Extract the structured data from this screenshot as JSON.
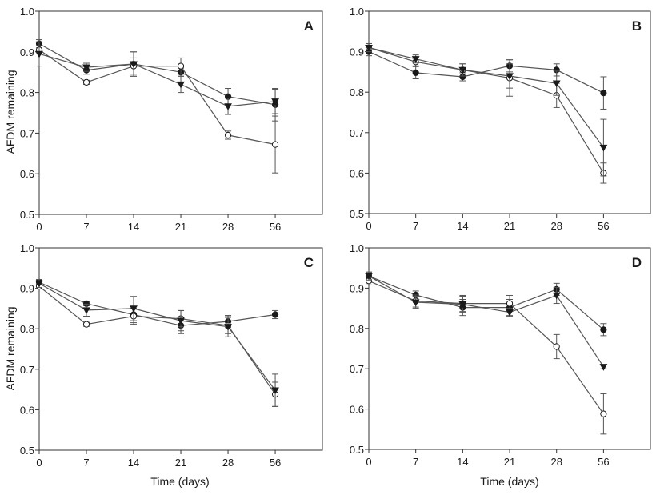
{
  "figure": {
    "x_axis_title": "Time (days)",
    "y_axis_title": "AFDM remaining"
  },
  "chart_data": [
    {
      "type": "line",
      "panel_label": "A",
      "categories": [
        "0",
        "7",
        "14",
        "21",
        "28",
        "56"
      ],
      "ylim": [
        0.5,
        1.0
      ],
      "yticks": [
        "0.5",
        "0.6",
        "0.7",
        "0.8",
        "0.9",
        "1.0"
      ],
      "xlabel": "",
      "ylabel": "AFDM remaining",
      "grid": false,
      "series": [
        {
          "marker": "circle-filled",
          "values": [
            0.92,
            0.855,
            0.87,
            0.85,
            0.79,
            0.77
          ],
          "errors": [
            0.01,
            0.01,
            0.03,
            0.01,
            0.02,
            0.04
          ]
        },
        {
          "marker": "circle-open",
          "values": [
            0.905,
            0.825,
            0.865,
            0.865,
            0.695,
            0.672
          ],
          "errors": [
            0.01,
            0.005,
            0.02,
            0.02,
            0.01,
            0.07
          ]
        },
        {
          "marker": "triangle-down",
          "values": [
            0.895,
            0.862,
            0.87,
            0.82,
            0.766,
            0.778
          ],
          "errors": [
            0.03,
            0.01,
            0.03,
            0.02,
            0.02,
            0.03
          ]
        }
      ]
    },
    {
      "type": "line",
      "panel_label": "B",
      "categories": [
        "0",
        "7",
        "14",
        "21",
        "28",
        "56"
      ],
      "ylim": [
        0.5,
        1.0
      ],
      "yticks": [
        "0.5",
        "0.6",
        "0.7",
        "0.8",
        "0.9",
        "1.0"
      ],
      "xlabel": "",
      "ylabel": "",
      "grid": false,
      "series": [
        {
          "marker": "circle-filled",
          "values": [
            0.9,
            0.848,
            0.838,
            0.865,
            0.855,
            0.798
          ],
          "errors": [
            0.01,
            0.015,
            0.01,
            0.015,
            0.015,
            0.04
          ]
        },
        {
          "marker": "circle-open",
          "values": [
            0.91,
            0.875,
            0.855,
            0.835,
            0.792,
            0.6
          ],
          "errors": [
            0.01,
            0.01,
            0.015,
            0.045,
            0.03,
            0.025
          ]
        },
        {
          "marker": "triangle-down",
          "values": [
            0.91,
            0.882,
            0.855,
            0.84,
            0.822,
            0.663
          ],
          "errors": [
            0.01,
            0.01,
            0.015,
            0.03,
            0.03,
            0.07
          ]
        }
      ]
    },
    {
      "type": "line",
      "panel_label": "C",
      "categories": [
        "0",
        "7",
        "14",
        "21",
        "28",
        "56"
      ],
      "ylim": [
        0.5,
        1.0
      ],
      "yticks": [
        "0.5",
        "0.6",
        "0.7",
        "0.8",
        "0.9",
        "1.0"
      ],
      "xlabel": "Time (days)",
      "ylabel": "AFDM remaining",
      "grid": false,
      "series": [
        {
          "marker": "circle-filled",
          "values": [
            0.915,
            0.862,
            0.835,
            0.808,
            0.818,
            0.835
          ],
          "errors": [
            0.005,
            0.005,
            0.02,
            0.02,
            0.015,
            0.01
          ]
        },
        {
          "marker": "circle-open",
          "values": [
            0.905,
            0.811,
            0.831,
            0.825,
            0.808,
            0.638
          ],
          "errors": [
            0.005,
            0.005,
            0.02,
            0.02,
            0.02,
            0.03
          ]
        },
        {
          "marker": "triangle-down",
          "values": [
            0.912,
            0.846,
            0.85,
            0.82,
            0.805,
            0.648
          ],
          "errors": [
            0.01,
            0.015,
            0.03,
            0.025,
            0.025,
            0.04
          ]
        }
      ]
    },
    {
      "type": "line",
      "panel_label": "D",
      "categories": [
        "0",
        "7",
        "14",
        "21",
        "28",
        "56"
      ],
      "ylim": [
        0.5,
        1.0
      ],
      "yticks": [
        "0.5",
        "0.6",
        "0.7",
        "0.8",
        "0.9",
        "1.0"
      ],
      "xlabel": "Time (days)",
      "ylabel": "",
      "grid": false,
      "series": [
        {
          "marker": "circle-filled",
          "values": [
            0.93,
            0.883,
            0.852,
            0.852,
            0.897,
            0.797
          ],
          "errors": [
            0.01,
            0.01,
            0.02,
            0.02,
            0.015,
            0.015
          ]
        },
        {
          "marker": "circle-open",
          "values": [
            0.918,
            0.868,
            0.862,
            0.862,
            0.755,
            0.588
          ],
          "errors": [
            0.01,
            0.015,
            0.02,
            0.02,
            0.03,
            0.05
          ]
        },
        {
          "marker": "triangle-down",
          "values": [
            0.93,
            0.865,
            0.86,
            0.84,
            0.882,
            0.705
          ],
          "errors": [
            0.01,
            0.015,
            0.02,
            0.01,
            0.02,
            0.005
          ]
        }
      ]
    }
  ]
}
